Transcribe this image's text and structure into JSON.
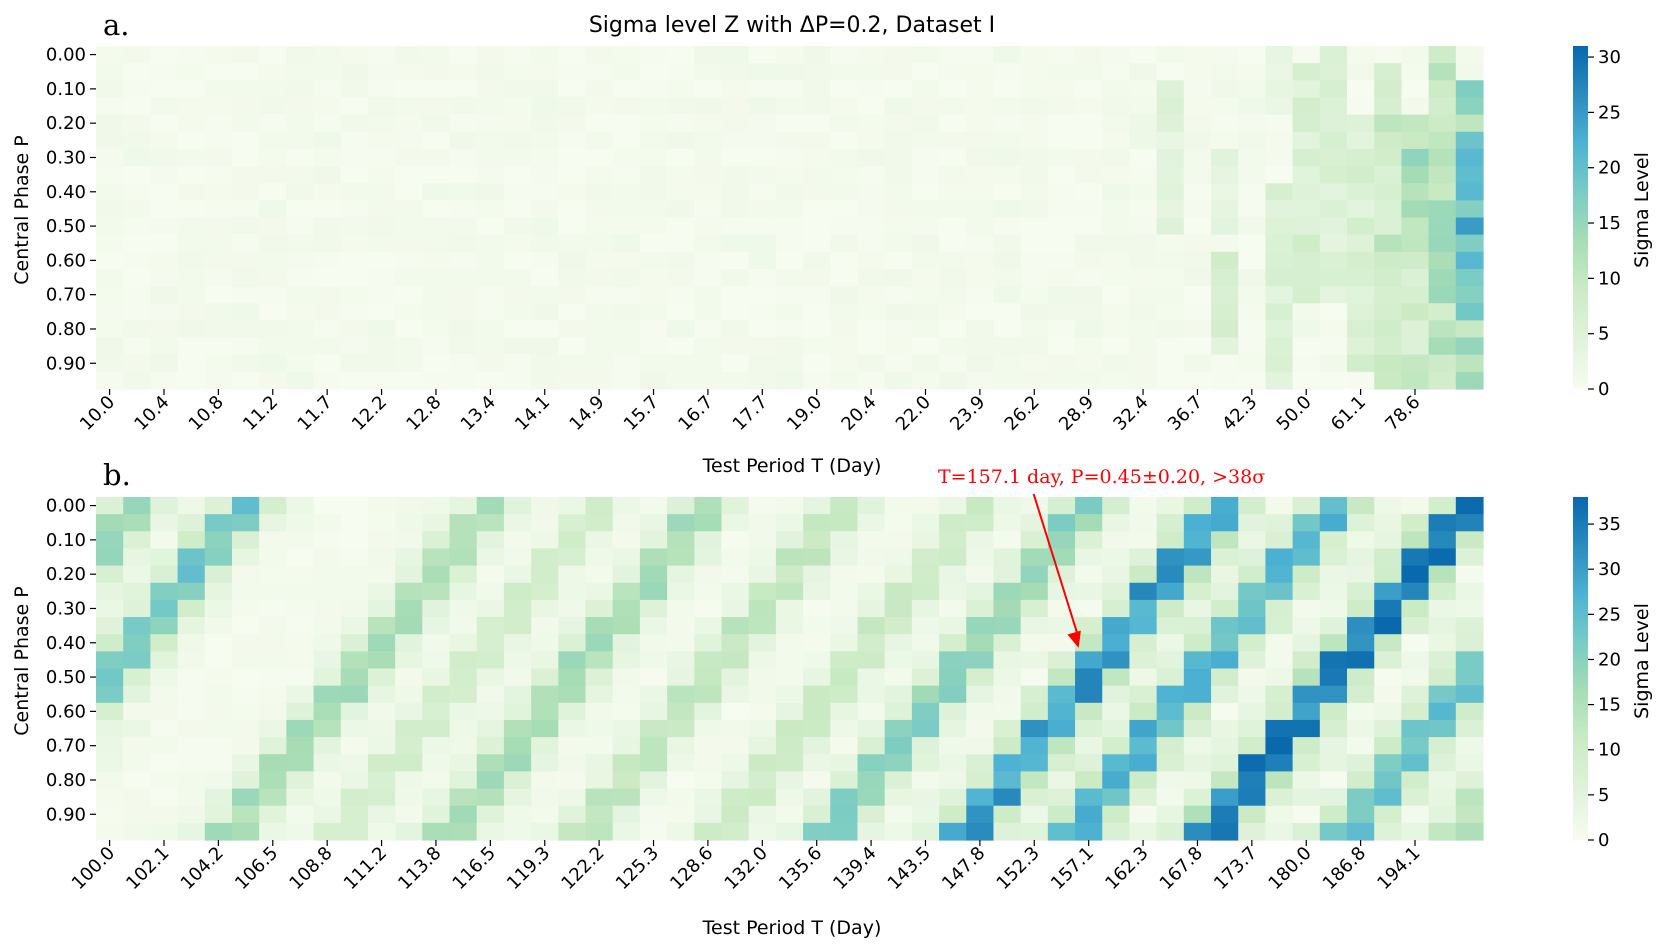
{
  "colors": {
    "cmap": [
      "#f7fcf0",
      "#e0f3db",
      "#ccebc5",
      "#a8ddb5",
      "#7bccc4",
      "#4eb3d3",
      "#2b8cbe",
      "#0868ac"
    ],
    "annotation": "#ff0000"
  },
  "chart_data": [
    {
      "panel_letter": "a.",
      "type": "heatmap",
      "title": "Sigma level Z with ΔP=0.2, Dataset I",
      "xlabel": "Test Period T (Day)",
      "ylabel": "Central Phase P",
      "x_tick_labels": [
        "10.0",
        "10.4",
        "10.8",
        "11.2",
        "11.7",
        "12.2",
        "12.8",
        "13.4",
        "14.1",
        "14.9",
        "15.7",
        "16.7",
        "17.7",
        "19.0",
        "20.4",
        "22.0",
        "23.9",
        "26.2",
        "28.9",
        "32.4",
        "36.7",
        "42.3",
        "50.0",
        "61.1",
        "78.6"
      ],
      "y_tick_labels": [
        "0.00",
        "0.10",
        "0.20",
        "0.30",
        "0.40",
        "0.50",
        "0.60",
        "0.70",
        "0.80",
        "0.90"
      ],
      "colorbar": {
        "label": "Sigma Level",
        "range": [
          0,
          31
        ],
        "ticks": [
          0,
          5,
          10,
          15,
          20,
          25,
          30
        ]
      },
      "n_cols": 51,
      "n_rows": 20,
      "features": [
        {
          "col": 38,
          "rows": [
            4,
            5
          ],
          "z": 3
        },
        {
          "col": 39,
          "rows": [
            2,
            3,
            4,
            5,
            6,
            7,
            8,
            9,
            10
          ],
          "z": 5
        },
        {
          "col": 41,
          "rows": [
            6,
            7,
            8,
            9,
            10
          ],
          "z": 4
        },
        {
          "col": 41,
          "rows": [
            12,
            13,
            14,
            15,
            16,
            17
          ],
          "z": 7
        },
        {
          "col": 43,
          "rows": [
            0,
            1,
            2,
            3
          ],
          "z": 3
        },
        {
          "col": 43,
          "rows": [
            8,
            9,
            10,
            11,
            12,
            13,
            14,
            15,
            16,
            17,
            18,
            19
          ],
          "z": 6
        },
        {
          "col": 44,
          "rows": [
            1,
            2,
            3,
            4,
            5,
            6,
            7,
            8,
            9,
            10,
            11,
            12,
            13,
            14
          ],
          "z": 7
        },
        {
          "col": 45,
          "rows": [
            0,
            1,
            2,
            3,
            4,
            5,
            6,
            7,
            8,
            9,
            10,
            11,
            12,
            13,
            14
          ],
          "z": 6
        },
        {
          "col": 46,
          "rows": [
            4,
            5,
            6,
            7,
            8,
            9,
            10,
            11,
            12,
            13,
            14,
            15,
            16,
            17,
            18
          ],
          "z": 7
        },
        {
          "col": 47,
          "rows": [
            1,
            2,
            3,
            4,
            5,
            6,
            7,
            8,
            9,
            10,
            11,
            12,
            13,
            14,
            15,
            16,
            17,
            18,
            19
          ],
          "z": 10
        },
        {
          "col": 48,
          "rows": [
            12,
            13,
            14,
            15,
            16,
            17,
            18,
            19
          ],
          "z": 9
        },
        {
          "col": 49,
          "rows": [
            0,
            1,
            2,
            3,
            4,
            5,
            6,
            7,
            8,
            9,
            10,
            11,
            12,
            13,
            14,
            15,
            16,
            17,
            18,
            19
          ],
          "z": 13
        },
        {
          "col": 50,
          "rows": [
            2,
            3,
            4,
            5,
            6,
            7,
            8,
            9,
            10,
            11,
            12,
            13,
            14,
            15,
            16,
            17,
            18,
            19
          ],
          "z": 17
        },
        {
          "col": 48,
          "rows": [
            4,
            5,
            6,
            7,
            8,
            9,
            10,
            11
          ],
          "z": 14
        },
        {
          "col": 49,
          "rows": [
            5,
            6,
            7,
            8,
            9,
            10,
            11,
            12,
            13,
            14
          ],
          "z": 14
        },
        {
          "col": 50,
          "rows": [
            6,
            7,
            8,
            9,
            10,
            11,
            12,
            13,
            14
          ],
          "z": 22
        }
      ]
    },
    {
      "panel_letter": "b.",
      "type": "heatmap",
      "title": "",
      "xlabel": "Test Period T (Day)",
      "ylabel": "Central Phase P",
      "x_tick_labels": [
        "100.0",
        "102.1",
        "104.2",
        "106.5",
        "108.8",
        "111.2",
        "113.8",
        "116.5",
        "119.3",
        "122.2",
        "125.3",
        "128.6",
        "132.0",
        "135.6",
        "139.4",
        "143.5",
        "147.8",
        "152.3",
        "157.1",
        "162.3",
        "167.8",
        "173.7",
        "180.0",
        "186.8",
        "194.1"
      ],
      "y_tick_labels": [
        "0.00",
        "0.10",
        "0.20",
        "0.30",
        "0.40",
        "0.50",
        "0.60",
        "0.70",
        "0.80",
        "0.90"
      ],
      "colorbar": {
        "label": "Sigma Level",
        "range": [
          0,
          38
        ],
        "ticks": [
          0,
          5,
          10,
          15,
          20,
          25,
          30,
          35
        ]
      },
      "n_cols": 51,
      "n_rows": 20,
      "bands": [
        {
          "start_col": 0,
          "row_at_start": 10,
          "slope": -2.0,
          "peak": 25,
          "width": 1
        },
        {
          "start_col": 1,
          "row_at_start": 0,
          "slope": -2.0,
          "peak": 20,
          "width": 1
        },
        {
          "start_col": 5,
          "row_at_start": 18,
          "slope": -2.0,
          "peak": 18,
          "width": 1
        },
        {
          "start_col": 8,
          "row_at_start": 20,
          "slope": -2.0,
          "peak": 10,
          "width": 1
        },
        {
          "start_col": 12,
          "row_at_start": 20,
          "slope": -2.0,
          "peak": 18,
          "width": 1
        },
        {
          "start_col": 17,
          "row_at_start": 20,
          "slope": -2.0,
          "peak": 14,
          "width": 1
        },
        {
          "start_col": 22,
          "row_at_start": 20,
          "slope": -2.0,
          "peak": 12,
          "width": 1
        },
        {
          "start_col": 26,
          "row_at_start": 20,
          "slope": -2.0,
          "peak": 22,
          "width": 1
        },
        {
          "start_col": 31,
          "row_at_start": 20,
          "slope": -2.0,
          "peak": 34,
          "width": 1
        },
        {
          "start_col": 35,
          "row_at_start": 20,
          "slope": -2.0,
          "peak": 30,
          "width": 1
        },
        {
          "start_col": 40,
          "row_at_start": 20,
          "slope": -2.0,
          "peak": 38,
          "width": 1
        },
        {
          "start_col": 45,
          "row_at_start": 20,
          "slope": -2.0,
          "peak": 28,
          "width": 1
        },
        {
          "start_col": 49,
          "row_at_start": 20,
          "slope": -2.0,
          "peak": 16,
          "width": 1
        }
      ],
      "annotation": {
        "text": "T=157.1 day, P=0.45±0.20, >38σ",
        "target_T": 157.1,
        "target_P": 0.45
      }
    }
  ]
}
